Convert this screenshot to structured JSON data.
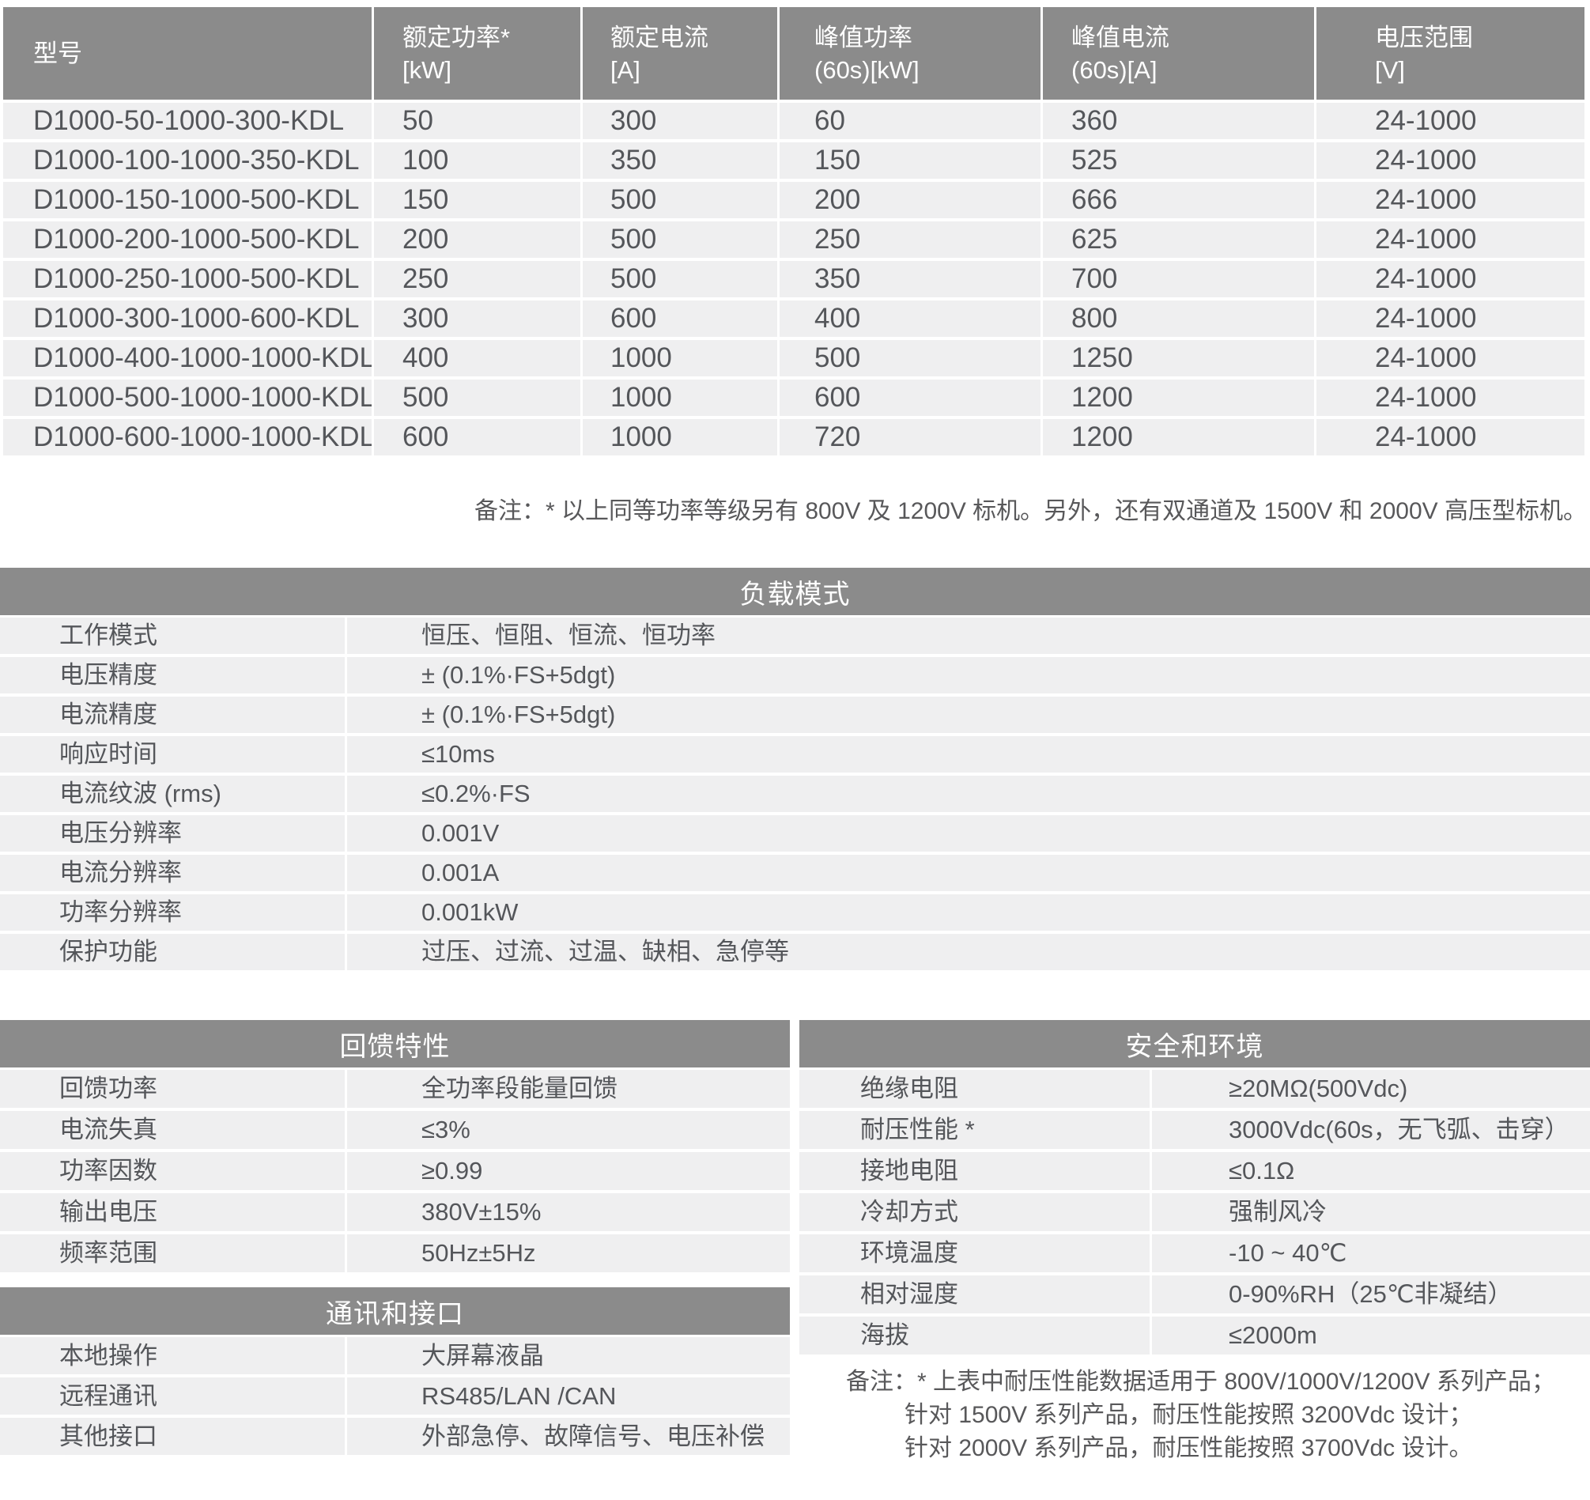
{
  "colors": {
    "section_band": "#8b8b8b",
    "row_background": "#efeff0",
    "body_text": "#54565a",
    "band_text": "#ffffff"
  },
  "model_table": {
    "columns": [
      "型号",
      "额定功率*\n[kW]",
      "额定电流\n[A]",
      "峰值功率\n(60s)[kW]",
      "峰值电流\n(60s)[A]",
      "电压范围\n[V]"
    ],
    "rows": [
      {
        "model": "D1000-50-1000-300-KDL",
        "rated_power_kw": "50",
        "rated_current_a": "300",
        "peak_power_kw": "60",
        "peak_current_a": "360",
        "voltage_range_v": "24-1000"
      },
      {
        "model": "D1000-100-1000-350-KDL",
        "rated_power_kw": "100",
        "rated_current_a": "350",
        "peak_power_kw": "150",
        "peak_current_a": "525",
        "voltage_range_v": "24-1000"
      },
      {
        "model": "D1000-150-1000-500-KDL",
        "rated_power_kw": "150",
        "rated_current_a": "500",
        "peak_power_kw": "200",
        "peak_current_a": "666",
        "voltage_range_v": "24-1000"
      },
      {
        "model": "D1000-200-1000-500-KDL",
        "rated_power_kw": "200",
        "rated_current_a": "500",
        "peak_power_kw": "250",
        "peak_current_a": "625",
        "voltage_range_v": "24-1000"
      },
      {
        "model": "D1000-250-1000-500-KDL",
        "rated_power_kw": "250",
        "rated_current_a": "500",
        "peak_power_kw": "350",
        "peak_current_a": "700",
        "voltage_range_v": "24-1000"
      },
      {
        "model": "D1000-300-1000-600-KDL",
        "rated_power_kw": "300",
        "rated_current_a": "600",
        "peak_power_kw": "400",
        "peak_current_a": "800",
        "voltage_range_v": "24-1000"
      },
      {
        "model": "D1000-400-1000-1000-KDL",
        "rated_power_kw": "400",
        "rated_current_a": "1000",
        "peak_power_kw": "500",
        "peak_current_a": "1250",
        "voltage_range_v": "24-1000"
      },
      {
        "model": "D1000-500-1000-1000-KDL",
        "rated_power_kw": "500",
        "rated_current_a": "1000",
        "peak_power_kw": "600",
        "peak_current_a": "1200",
        "voltage_range_v": "24-1000"
      },
      {
        "model": "D1000-600-1000-1000-KDL",
        "rated_power_kw": "600",
        "rated_current_a": "1000",
        "peak_power_kw": "720",
        "peak_current_a": "1200",
        "voltage_range_v": "24-1000"
      }
    ],
    "note": "备注：* 以上同等功率等级另有 800V 及 1200V 标机。另外，还有双通道及 1500V 和 2000V 高压型标机。"
  },
  "load_mode": {
    "title": "负载模式",
    "rows": [
      {
        "label": "工作模式",
        "value": "恒压、恒阻、恒流、恒功率"
      },
      {
        "label": "电压精度",
        "value": "± (0.1%·FS+5dgt)"
      },
      {
        "label": "电流精度",
        "value": "± (0.1%·FS+5dgt)"
      },
      {
        "label": "响应时间",
        "value": "≤10ms"
      },
      {
        "label": "电流纹波 (rms)",
        "value": "≤0.2%·FS"
      },
      {
        "label": "电压分辨率",
        "value": "0.001V"
      },
      {
        "label": "电流分辨率",
        "value": "0.001A"
      },
      {
        "label": "功率分辨率",
        "value": "0.001kW"
      },
      {
        "label": "保护功能",
        "value": "过压、过流、过温、缺相、急停等"
      }
    ]
  },
  "feedback": {
    "title": "回馈特性",
    "rows": [
      {
        "label": "回馈功率",
        "value": "全功率段能量回馈"
      },
      {
        "label": "电流失真",
        "value": "≤3%"
      },
      {
        "label": "功率因数",
        "value": "≥0.99"
      },
      {
        "label": "输出电压",
        "value": "380V±15%"
      },
      {
        "label": "频率范围",
        "value": "50Hz±5Hz"
      }
    ]
  },
  "communication": {
    "title": "通讯和接口",
    "rows": [
      {
        "label": "本地操作",
        "value": "大屏幕液晶"
      },
      {
        "label": "远程通讯",
        "value": "RS485/LAN /CAN"
      },
      {
        "label": "其他接口",
        "value": "外部急停、故障信号、电压补偿"
      }
    ]
  },
  "safety": {
    "title": "安全和环境",
    "rows": [
      {
        "label": "绝缘电阻",
        "value": "≥20MΩ(500Vdc)"
      },
      {
        "label": "耐压性能 *",
        "value": "3000Vdc(60s，无飞弧、击穿）"
      },
      {
        "label": "接地电阻",
        "value": "≤0.1Ω"
      },
      {
        "label": "冷却方式",
        "value": "强制风冷"
      },
      {
        "label": "环境温度",
        "value": "-10 ~ 40℃"
      },
      {
        "label": "相对湿度",
        "value": "0-90%RH（25℃非凝结）"
      },
      {
        "label": "海拔",
        "value": "≤2000m"
      }
    ],
    "note_lines": [
      "备注：* 上表中耐压性能数据适用于 800V/1000V/1200V 系列产品；",
      "针对 1500V 系列产品，耐压性能按照 3200Vdc 设计；",
      "针对 2000V 系列产品，耐压性能按照 3700Vdc 设计。"
    ]
  }
}
